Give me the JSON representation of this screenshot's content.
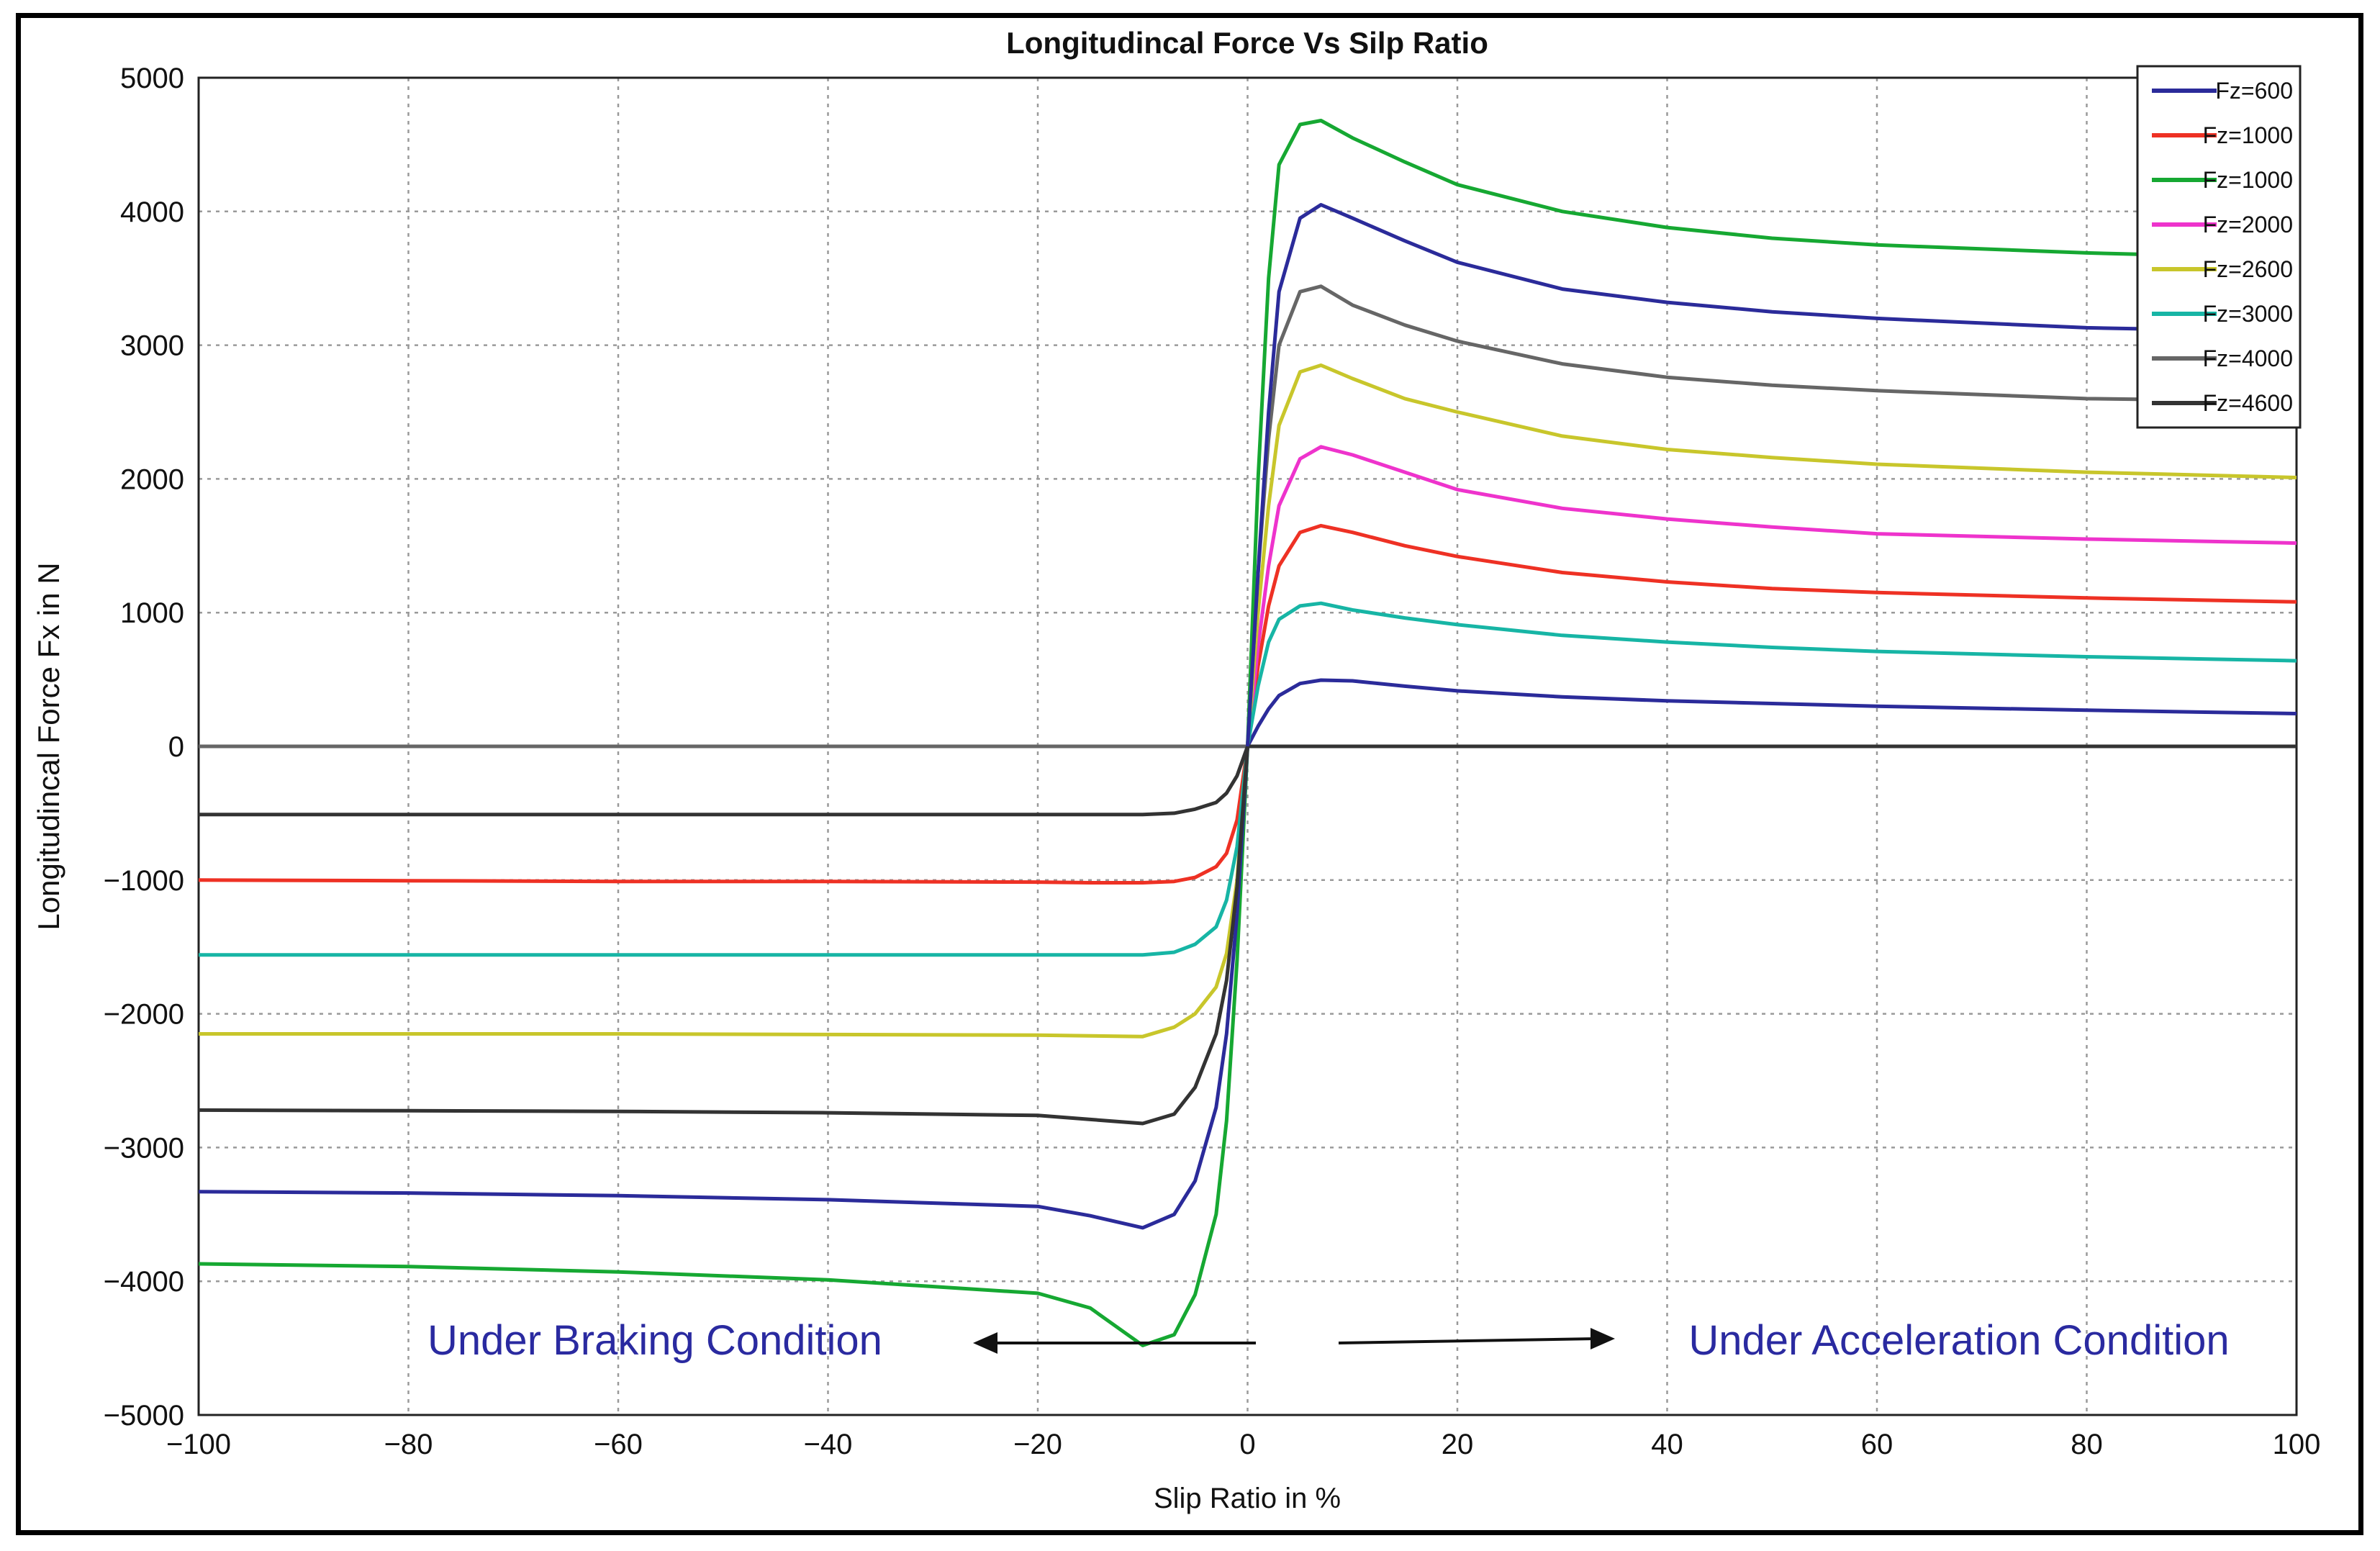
{
  "chart_data": {
    "type": "line",
    "title": "Longitudincal Force Vs Silp Ratio",
    "xlabel": "Slip Ratio in %",
    "ylabel": "Longitudincal Force Fx in N",
    "xlim": [
      -100,
      100
    ],
    "ylim": [
      -5000,
      5000
    ],
    "xticks": [
      -100,
      -80,
      -60,
      -40,
      -20,
      0,
      20,
      40,
      60,
      80,
      100
    ],
    "yticks": [
      -5000,
      -4000,
      -3000,
      -2000,
      -1000,
      0,
      1000,
      2000,
      3000,
      4000,
      5000
    ],
    "xtick_labels": [
      "−100",
      "−80",
      "−60",
      "−40",
      "−20",
      "0",
      "20",
      "40",
      "60",
      "80",
      "100"
    ],
    "ytick_labels": [
      "−5000",
      "−4000",
      "−3000",
      "−2000",
      "−1000",
      "0",
      "1000",
      "2000",
      "3000",
      "4000",
      "5000"
    ],
    "grid": true,
    "legend_position": "top-right",
    "x": [
      -100,
      -80,
      -60,
      -40,
      -20,
      -15,
      -10,
      -7,
      -5,
      -3,
      -2,
      -1,
      0,
      1,
      2,
      3,
      5,
      7,
      10,
      15,
      20,
      30,
      40,
      50,
      60,
      80,
      100
    ],
    "series": [
      {
        "name": "Fz=600",
        "color": "#2b2b9a",
        "values": [
          0,
          0,
          0,
          0,
          0,
          0,
          0,
          0,
          0,
          0,
          0,
          0,
          0,
          150,
          280,
          380,
          470,
          495,
          490,
          450,
          415,
          370,
          340,
          320,
          300,
          270,
          245
        ]
      },
      {
        "name": "Fz=1000",
        "color": "#ee3124",
        "values": [
          -1000,
          -1005,
          -1010,
          -1010,
          -1015,
          -1020,
          -1020,
          -1010,
          -980,
          -900,
          -800,
          -550,
          0,
          600,
          1050,
          1350,
          1600,
          1650,
          1600,
          1500,
          1420,
          1300,
          1230,
          1180,
          1150,
          1110,
          1080
        ]
      },
      {
        "name": "Fz=1000",
        "color": "#16a832",
        "values": [
          -3870,
          -3890,
          -3930,
          -3990,
          -4090,
          -4200,
          -4480,
          -4400,
          -4100,
          -3500,
          -2800,
          -1600,
          0,
          2000,
          3500,
          4350,
          4650,
          4680,
          4550,
          4370,
          4200,
          4000,
          3880,
          3800,
          3750,
          3690,
          3650
        ]
      },
      {
        "name": "Fz=2000",
        "color": "#ee33cc",
        "values": [
          0,
          0,
          0,
          0,
          0,
          0,
          0,
          0,
          0,
          0,
          0,
          0,
          0,
          750,
          1350,
          1800,
          2150,
          2240,
          2180,
          2050,
          1920,
          1780,
          1700,
          1640,
          1590,
          1550,
          1520
        ]
      },
      {
        "name": "Fz=2600",
        "color": "#c8c62b",
        "values": [
          -2150,
          -2150,
          -2150,
          -2155,
          -2160,
          -2165,
          -2170,
          -2100,
          -2000,
          -1800,
          -1550,
          -1000,
          0,
          1000,
          1800,
          2400,
          2800,
          2850,
          2750,
          2600,
          2500,
          2320,
          2220,
          2160,
          2110,
          2050,
          2010
        ]
      },
      {
        "name": "Fz=3000",
        "color": "#17b5a5",
        "values": [
          -1560,
          -1560,
          -1560,
          -1560,
          -1560,
          -1560,
          -1560,
          -1540,
          -1480,
          -1350,
          -1150,
          -750,
          0,
          450,
          780,
          950,
          1050,
          1070,
          1020,
          960,
          910,
          830,
          780,
          740,
          710,
          670,
          640
        ]
      },
      {
        "name": "Fz=4000",
        "color": "#666666",
        "values": [
          0,
          0,
          0,
          0,
          0,
          0,
          0,
          0,
          0,
          0,
          0,
          0,
          0,
          1300,
          2300,
          3000,
          3400,
          3440,
          3300,
          3150,
          3030,
          2860,
          2760,
          2700,
          2660,
          2600,
          2580
        ]
      },
      {
        "name": "Fz=4600",
        "color": "#333333",
        "values": [
          -510,
          -510,
          -510,
          -510,
          -510,
          -510,
          -510,
          -500,
          -470,
          -420,
          -350,
          -220,
          0,
          0,
          0,
          0,
          0,
          0,
          0,
          0,
          0,
          0,
          0,
          0,
          0,
          0,
          0
        ]
      }
    ],
    "extra_curves": [
      {
        "name": "dark-blue-braking",
        "color": "#2b2b9a",
        "x": [
          -100,
          -80,
          -60,
          -40,
          -20,
          -15,
          -10,
          -7,
          -5,
          -3,
          -2,
          -1,
          0,
          1,
          2,
          3,
          5,
          7,
          10,
          15,
          20,
          30,
          40,
          50,
          60,
          80,
          100
        ],
        "values": [
          -3330,
          -3340,
          -3360,
          -3390,
          -3440,
          -3510,
          -3600,
          -3500,
          -3250,
          -2700,
          -2150,
          -1250,
          0,
          1300,
          2500,
          3400,
          3950,
          4050,
          3950,
          3780,
          3620,
          3420,
          3320,
          3250,
          3200,
          3130,
          3100
        ]
      },
      {
        "name": "dark-gray-braking",
        "color": "#333333",
        "x": [
          -100,
          -80,
          -60,
          -40,
          -20,
          -15,
          -10,
          -7,
          -5,
          -3,
          -2,
          -1,
          0
        ],
        "values": [
          -2720,
          -2725,
          -2730,
          -2740,
          -2760,
          -2790,
          -2820,
          -2750,
          -2550,
          -2150,
          -1750,
          -1050,
          0
        ]
      }
    ],
    "annotations": {
      "braking": "Under Braking Condition",
      "acceleration": "Under Acceleration Condition"
    }
  }
}
